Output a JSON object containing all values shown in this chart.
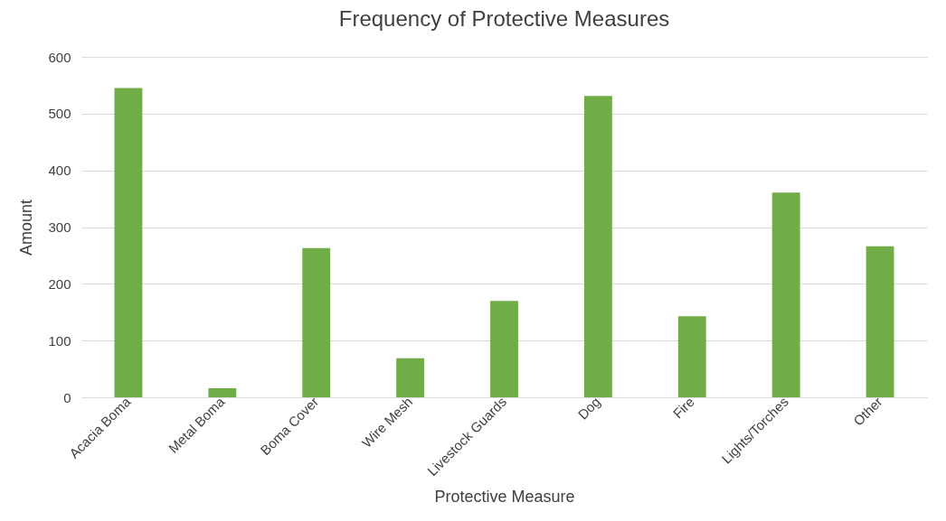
{
  "chart_data": {
    "type": "bar",
    "title": "Frequency of Protective Measures",
    "xlabel": "Protective Measure",
    "ylabel": "Amount",
    "categories": [
      "Acacia Boma",
      "Metal Boma",
      "Boma Cover",
      "Wire Mesh",
      "Livestock Guards",
      "Dog",
      "Fire",
      "Lights/Torches",
      "Other"
    ],
    "values": [
      545,
      16,
      263,
      69,
      170,
      531,
      143,
      361,
      266
    ],
    "color": "#70ad47",
    "ylim": [
      0,
      600
    ],
    "yticks": [
      0,
      100,
      200,
      300,
      400,
      500,
      600
    ],
    "grid": "y"
  }
}
